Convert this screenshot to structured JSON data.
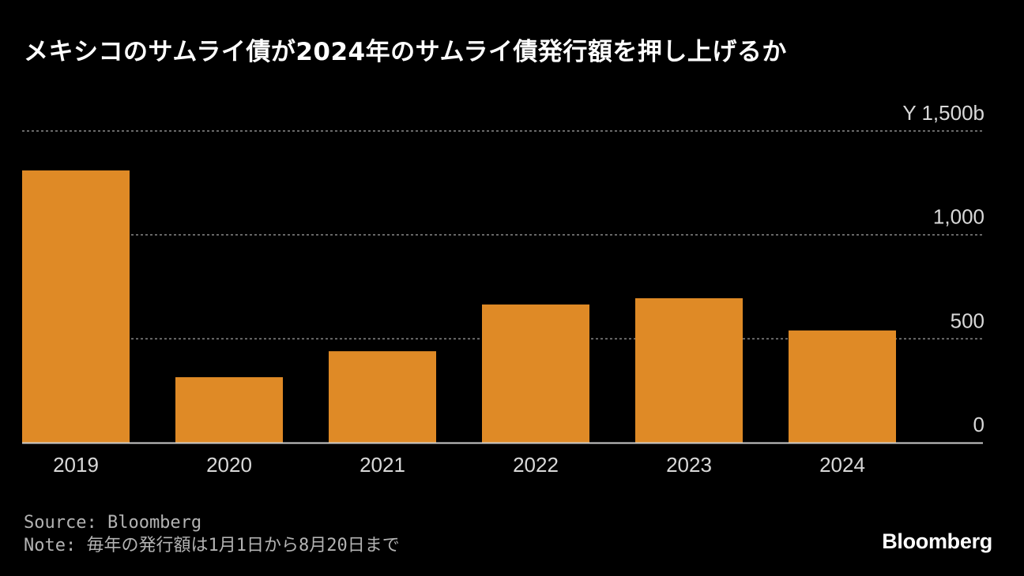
{
  "title": "メキシコのサムライ債が2024年のサムライ債発行額を押し上げるか",
  "source_line": "Source: Bloomberg",
  "note_line": "Note: 毎年の発行額は1月1日から8月20日まで",
  "brand": "Bloomberg",
  "colors": {
    "bar": "#df8a26",
    "grid": "#8c8c8c",
    "axis": "#cccccc",
    "background": "#000000"
  },
  "chart_data": {
    "type": "bar",
    "categories": [
      "2019",
      "2020",
      "2021",
      "2022",
      "2023",
      "2024"
    ],
    "values": [
      1310,
      315,
      440,
      665,
      695,
      540
    ],
    "ylim": [
      0,
      1500
    ],
    "yticks": [
      0,
      500,
      1000,
      1500
    ],
    "ytick_labels": [
      "0",
      "500",
      "1,000",
      "Y 1,500b"
    ],
    "grid": true,
    "y_axis_position": "right",
    "title": "メキシコのサムライ債が2024年のサムライ債発行額を押し上げるか",
    "xlabel": "",
    "ylabel": ""
  }
}
